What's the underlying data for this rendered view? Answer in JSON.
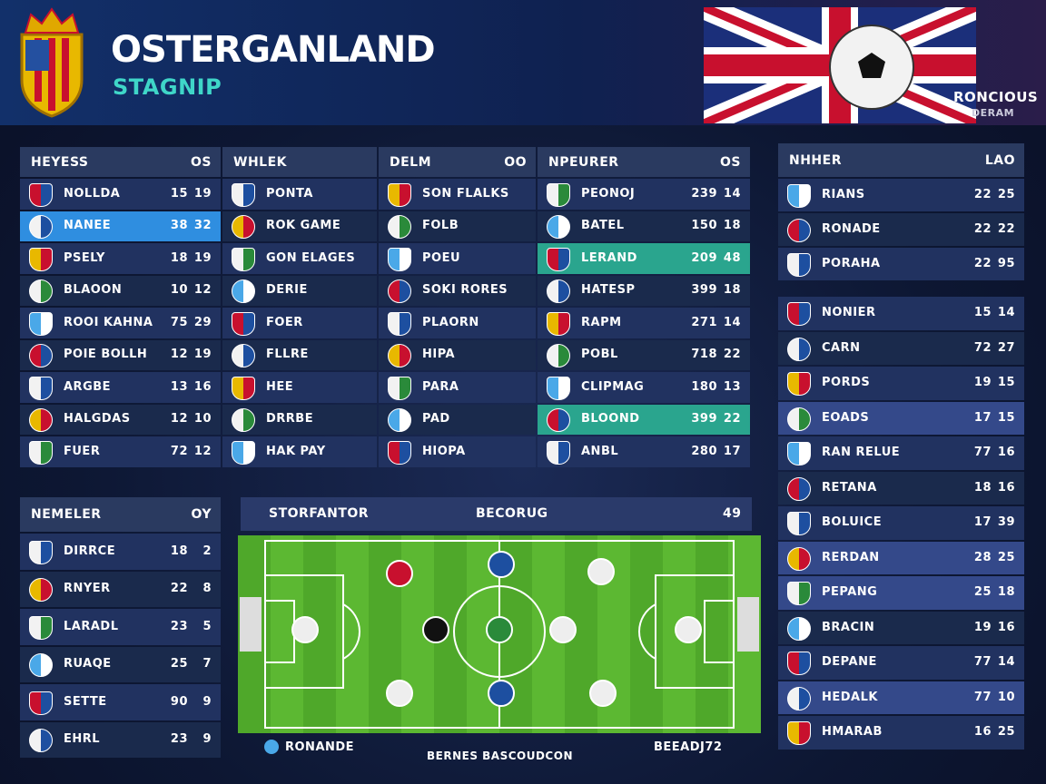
{
  "header": {
    "title": "OSTERGANLAND",
    "subtitle": "STAGNIP",
    "badge": [
      "RONCIOUS",
      "DERAM"
    ]
  },
  "tables": [
    {
      "header": [
        "HEYESS",
        "OS"
      ],
      "rows": [
        [
          "NOLLDA",
          15,
          19
        ],
        [
          "NANEE",
          38,
          32
        ],
        [
          "PSELY",
          18,
          19
        ],
        [
          "BLAOON",
          10,
          12
        ],
        [
          "ROOI KAHNA",
          75,
          29
        ],
        [
          "POIE BOLLH",
          12,
          19
        ],
        [
          "ARGBE",
          13,
          16
        ],
        [
          "HALGDAS",
          12,
          10
        ],
        [
          "FUER",
          72,
          12
        ]
      ]
    },
    {
      "header": [
        "WHLEK"
      ],
      "rows": [
        [
          "PONTA"
        ],
        [
          "ROK GAME"
        ],
        [
          "GON ELAGES"
        ],
        [
          "DERIE"
        ],
        [
          "FOER"
        ],
        [
          "FLLRE"
        ],
        [
          "HEE"
        ],
        [
          "DRRBE"
        ],
        [
          "HAK PAY"
        ]
      ]
    },
    {
      "header": [
        "DELM",
        "OO"
      ],
      "rows": [
        [
          "SON FLALKS"
        ],
        [
          "FOLB"
        ],
        [
          "POEU"
        ],
        [
          "SOKI RORES"
        ],
        [
          "PLAORN"
        ],
        [
          "HIPA"
        ],
        [
          "PARA"
        ],
        [
          "PAD"
        ],
        [
          "HIOPA"
        ]
      ]
    },
    {
      "header": [
        "NPEURER",
        "OS"
      ],
      "rows": [
        [
          "PEONOJ",
          239,
          14
        ],
        [
          "BATEL",
          150,
          18
        ],
        [
          "LERAND",
          209,
          48
        ],
        [
          "HATESP",
          399,
          18
        ],
        [
          "RAPM",
          271,
          14
        ],
        [
          "POBL",
          718,
          22
        ],
        [
          "CLIPMAG",
          180,
          13
        ],
        [
          "BLOOND",
          399,
          22
        ],
        [
          "ANBL",
          280,
          17
        ]
      ]
    },
    {
      "header": [
        "NHHER",
        "LAO"
      ],
      "rows": [
        [
          "RIANS",
          22,
          25
        ],
        [
          "RONADE",
          22,
          22
        ],
        [
          "PORAHA",
          22,
          95
        ]
      ]
    },
    {
      "rows": [
        [
          "NONIER",
          15,
          14
        ],
        [
          "CARN",
          72,
          27
        ],
        [
          "PORDS",
          19,
          15
        ],
        [
          "EOADS",
          17,
          15
        ],
        [
          "RAN RELUE",
          77,
          16
        ],
        [
          "RETANA",
          18,
          16
        ],
        [
          "BOLUICE",
          17,
          39
        ],
        [
          "RERDAN",
          28,
          25
        ],
        [
          "PEPANG",
          25,
          18
        ],
        [
          "BRACIN",
          19,
          16
        ],
        [
          "DEPANE",
          77,
          14
        ],
        [
          "HEDALK",
          77,
          10
        ],
        [
          "HMARAB",
          16,
          25
        ]
      ]
    },
    {
      "header": [
        "NEMELER",
        "OY"
      ],
      "rows": [
        [
          "DIRRCE",
          18,
          2
        ],
        [
          "RNYER",
          22,
          8
        ],
        [
          "LARADL",
          23,
          5
        ],
        [
          "RUAQE",
          25,
          7
        ],
        [
          "SETTE",
          90,
          9
        ],
        [
          "EHRL",
          23,
          9
        ]
      ]
    }
  ],
  "pitch": {
    "header": [
      "STORFANTOR",
      "BECORUG",
      "49"
    ],
    "footer": [
      "RONANDE",
      "BERNES BASCOUDCON",
      "BEEADJ72"
    ]
  }
}
